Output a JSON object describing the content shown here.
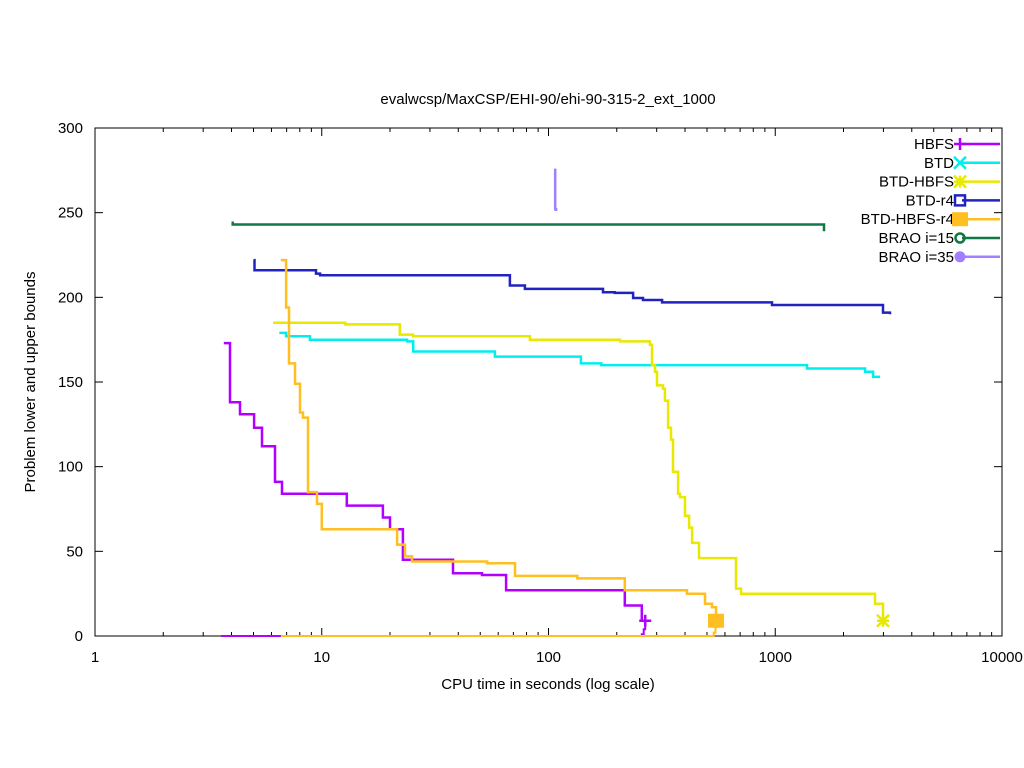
{
  "chart_data": {
    "type": "line",
    "title": "evalwcsp/MaxCSP/EHI-90/ehi-90-315-2_ext_1000",
    "xlabel": "CPU time in seconds (log scale)",
    "ylabel": "Problem lower and upper bounds",
    "xscale": "log",
    "xlim": [
      1,
      10000
    ],
    "ylim": [
      0,
      300
    ],
    "xticks": [
      1,
      10,
      100,
      1000,
      10000
    ],
    "xtick_labels": [
      "1",
      "10",
      "100",
      "1000",
      "10000"
    ],
    "yticks": [
      0,
      50,
      100,
      150,
      200,
      250,
      300
    ],
    "ytick_labels": [
      "0",
      "50",
      "100",
      "150",
      "200",
      "250",
      "300"
    ],
    "grid": false,
    "legend_position": "top-right",
    "series": [
      {
        "name": "HBFS",
        "color": "#b000ff",
        "marker": "plus",
        "x": [
          3.7,
          3.94,
          4.36,
          5.03,
          5.45,
          6.22,
          6.68,
          12.9,
          18.6,
          20,
          22.8,
          37.9,
          50.9,
          65,
          217,
          258,
          267
        ],
        "y": [
          173,
          138,
          131,
          123,
          112,
          91,
          84,
          77,
          70,
          63,
          45,
          37,
          36,
          27,
          18,
          9,
          9
        ],
        "lower_x": [
          3.6,
          250,
          258,
          263,
          267
        ],
        "lower_y": [
          0,
          0,
          1,
          4,
          9
        ]
      },
      {
        "name": "BTD",
        "color": "#00eeee",
        "marker": "cross",
        "x": [
          6.5,
          6.96,
          8.87,
          23.8,
          25.3,
          58,
          139,
          171,
          1380,
          2490,
          2700,
          2900
        ],
        "y": [
          179,
          177,
          175,
          174,
          168,
          165,
          161,
          160,
          158,
          156,
          153,
          153
        ]
      },
      {
        "name": "BTD-HBFS",
        "color": "#e8e800",
        "marker": "star",
        "x": [
          6.1,
          12.7,
          22.1,
          25.3,
          82.8,
          207,
          280,
          286,
          295,
          301,
          320,
          326,
          337,
          347,
          354,
          373,
          380,
          400,
          417,
          430,
          461,
          671,
          706,
          2754,
          2986
        ],
        "y": [
          185,
          184,
          178,
          177,
          175,
          174,
          172,
          160,
          156,
          148,
          146,
          139,
          123,
          116,
          97,
          84,
          82,
          71,
          64,
          55,
          46,
          28,
          25,
          19,
          9
        ]
      },
      {
        "name": "BTD-r4",
        "color": "#2222c0",
        "marker": "open-square",
        "x": [
          5,
          5.05,
          9.43,
          9.83,
          67.6,
          78.7,
          174,
          196,
          236,
          261,
          317,
          968,
          2986,
          3207
        ],
        "y": [
          222,
          216,
          214,
          213,
          207,
          205,
          203,
          202.6,
          199.6,
          198.4,
          197,
          195.5,
          191,
          190
        ]
      },
      {
        "name": "BTD-HBFS-r4",
        "color": "#ffbf20",
        "marker": "filled-square",
        "x": [
          6.6,
          6.96,
          7.17,
          7.62,
          8.02,
          8.27,
          8.7,
          9.53,
          10,
          21.5,
          23.3,
          25,
          53.6,
          71.2,
          134,
          217,
          408,
          490,
          526,
          548
        ],
        "y": [
          222,
          194,
          161,
          149,
          132,
          129,
          85,
          78,
          63,
          54,
          47,
          44,
          43,
          35.5,
          34,
          27,
          25,
          19,
          17,
          9
        ],
        "lower_x": [
          6.6,
          520,
          535,
          545,
          548
        ],
        "lower_y": [
          0,
          0,
          2,
          5,
          9
        ]
      },
      {
        "name": "BRAO i=15",
        "color": "#117744",
        "marker": "open-circle",
        "x": [
          4.0,
          4.05,
          1641,
          1641
        ],
        "y": [
          244,
          243,
          243,
          239
        ]
      },
      {
        "name": "BRAO i=35",
        "color": "#a080ff",
        "marker": "filled-circle",
        "x": [
          107,
          107,
          108
        ],
        "y": [
          276,
          252,
          251
        ]
      }
    ]
  }
}
